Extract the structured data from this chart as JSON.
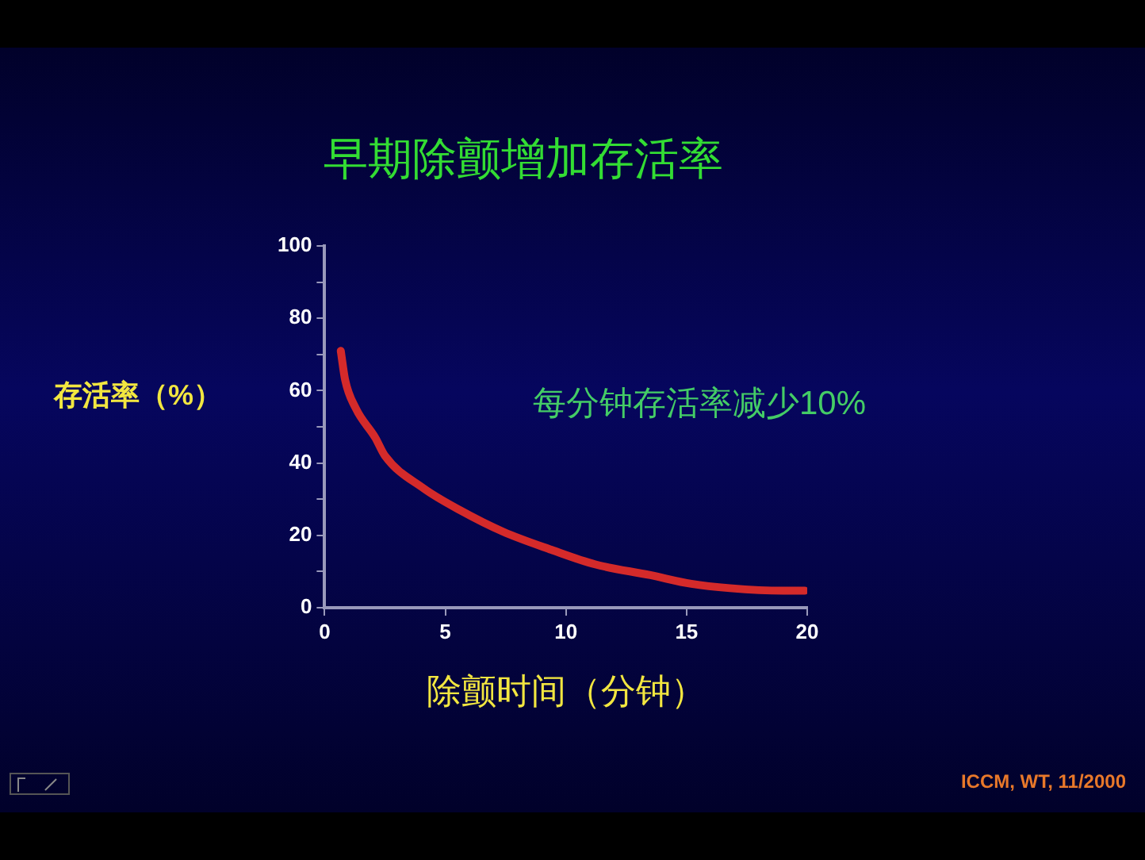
{
  "chart_data": {
    "type": "line",
    "title": "早期除颤增加存活率",
    "xlabel": "除颤时间（分钟）",
    "ylabel": "存活率（%）",
    "annotations": [
      "每分钟存活率减少10%",
      "ICCM, WT, 11/2000"
    ],
    "x": [
      0.67,
      0.85,
      1.3,
      2.1,
      2.5,
      4.1,
      5.6,
      7.4,
      9.4,
      11.2,
      13.5,
      15.2,
      16.8,
      19,
      19.9
    ],
    "series": [
      {
        "color": "#d42a2a",
        "values": [
          71,
          63,
          55,
          47,
          42,
          33,
          27,
          21,
          16,
          12,
          9,
          6.6,
          5.4,
          4.7,
          4.7
        ]
      }
    ],
    "xlim": [
      0,
      20
    ],
    "xticks": [
      0,
      5,
      10,
      15,
      20
    ],
    "ylim": [
      0,
      100
    ],
    "yticks": [
      0,
      {
        "value": 10,
        "label": null
      },
      20,
      {
        "value": 30,
        "label": null
      },
      40,
      {
        "value": 50,
        "label": null
      },
      60,
      {
        "value": 70,
        "label": null
      },
      80,
      {
        "value": 90,
        "label": null
      },
      100
    ],
    "grid": false,
    "legend": false,
    "marker": "none",
    "line_style": "solid"
  }
}
